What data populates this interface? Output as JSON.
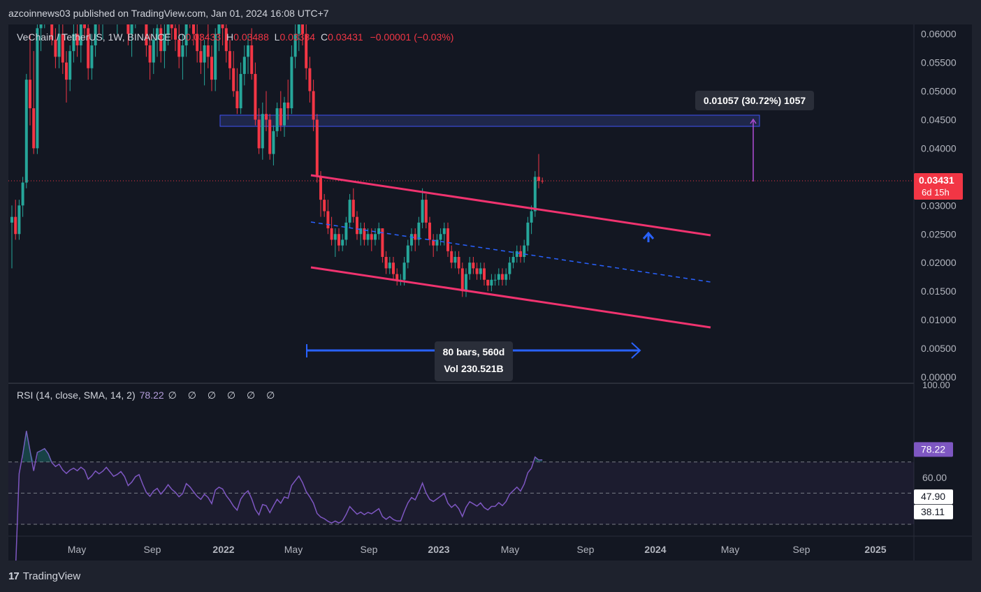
{
  "header": {
    "published": "azcoinnews03 published on TradingView.com, Jan 01, 2024 16:08 UTC+7"
  },
  "legend": {
    "symbol": "VeChain / TetherUS, 1W, BINANCE",
    "o_label": "O",
    "o_value": "0.03433",
    "h_label": "H",
    "h_value": "0.03488",
    "l_label": "L",
    "l_value": "0.03384",
    "c_label": "C",
    "c_value": "0.03431",
    "change": "−0.00001 (−0.03%)"
  },
  "price_axis": {
    "ticks": [
      "0.06000",
      "0.05500",
      "0.05000",
      "0.04500",
      "0.04000",
      "0.03500",
      "0.03000",
      "0.02500",
      "0.02000",
      "0.01500",
      "0.01000",
      "0.00500",
      "0.00000"
    ],
    "current_price": "0.03431",
    "countdown": "6d 15h"
  },
  "annotations": {
    "measure_label": "0.01057 (30.72%) 1057",
    "range_line1": "80 bars, 560d",
    "range_line2": "Vol 230.521B"
  },
  "rsi": {
    "legend": "RSI (14, close, SMA, 14, 2)",
    "value": "78.22",
    "placeholders": "∅ ∅ ∅ ∅ ∅ ∅",
    "axis_top": "100.00",
    "axis_60": "60.00",
    "sma_value": "47.90",
    "lower_value": "38.11"
  },
  "time_axis": [
    "May",
    "Sep",
    "2022",
    "May",
    "Sep",
    "2023",
    "May",
    "Sep",
    "2024",
    "May",
    "Sep",
    "2025"
  ],
  "footer": {
    "brand": "TradingView",
    "logo": "17"
  },
  "colors": {
    "up": "#26a69a",
    "down": "#f23645",
    "channel": "#f0336f",
    "rsi": "#7e57c2",
    "zone": "#3f51b5",
    "bg": "#131722"
  },
  "chart_data": {
    "type": "candlestick",
    "timeframe": "1W",
    "ylim": [
      0,
      0.062
    ],
    "rsi_ylim": [
      0,
      100
    ],
    "series": [
      {
        "name": "VeChain / TetherUS",
        "values": [
          [
            0.027,
            0.03,
            0.019,
            0.028
          ],
          [
            0.028,
            0.031,
            0.024,
            0.025
          ],
          [
            0.025,
            0.031,
            0.024,
            0.03
          ],
          [
            0.03,
            0.035,
            0.028,
            0.034
          ],
          [
            0.034,
            0.053,
            0.033,
            0.052
          ],
          [
            0.052,
            0.06,
            0.044,
            0.047
          ],
          [
            0.047,
            0.057,
            0.039,
            0.04
          ],
          [
            0.04,
            0.063,
            0.039,
            0.061
          ],
          [
            0.061,
            0.068,
            0.057,
            0.064
          ],
          [
            0.064,
            0.07,
            0.061,
            0.068
          ],
          [
            0.068,
            0.075,
            0.063,
            0.065
          ],
          [
            0.065,
            0.068,
            0.058,
            0.059
          ],
          [
            0.059,
            0.061,
            0.054,
            0.056
          ],
          [
            0.056,
            0.062,
            0.054,
            0.06
          ],
          [
            0.06,
            0.064,
            0.053,
            0.055
          ],
          [
            0.055,
            0.057,
            0.048,
            0.052
          ],
          [
            0.052,
            0.058,
            0.05,
            0.057
          ],
          [
            0.057,
            0.062,
            0.055,
            0.06
          ],
          [
            0.06,
            0.065,
            0.056,
            0.058
          ],
          [
            0.058,
            0.064,
            0.055,
            0.063
          ],
          [
            0.063,
            0.07,
            0.059,
            0.061
          ],
          [
            0.061,
            0.063,
            0.052,
            0.054
          ],
          [
            0.054,
            0.06,
            0.052,
            0.058
          ],
          [
            0.058,
            0.066,
            0.056,
            0.064
          ],
          [
            0.064,
            0.068,
            0.06,
            0.062
          ],
          [
            0.062,
            0.066,
            0.059,
            0.065
          ],
          [
            0.065,
            0.072,
            0.063,
            0.07
          ],
          [
            0.07,
            0.074,
            0.066,
            0.067
          ],
          [
            0.067,
            0.07,
            0.062,
            0.064
          ],
          [
            0.064,
            0.068,
            0.06,
            0.066
          ],
          [
            0.066,
            0.071,
            0.064,
            0.069
          ],
          [
            0.069,
            0.073,
            0.065,
            0.066
          ],
          [
            0.066,
            0.069,
            0.058,
            0.06
          ],
          [
            0.06,
            0.065,
            0.056,
            0.063
          ],
          [
            0.063,
            0.07,
            0.061,
            0.068
          ],
          [
            0.068,
            0.073,
            0.064,
            0.07
          ],
          [
            0.07,
            0.075,
            0.062,
            0.064
          ],
          [
            0.064,
            0.066,
            0.056,
            0.058
          ],
          [
            0.058,
            0.06,
            0.052,
            0.055
          ],
          [
            0.055,
            0.061,
            0.053,
            0.059
          ],
          [
            0.059,
            0.063,
            0.056,
            0.061
          ],
          [
            0.061,
            0.064,
            0.055,
            0.057
          ],
          [
            0.057,
            0.062,
            0.054,
            0.06
          ],
          [
            0.06,
            0.066,
            0.058,
            0.064
          ],
          [
            0.064,
            0.067,
            0.059,
            0.061
          ],
          [
            0.061,
            0.064,
            0.057,
            0.059
          ],
          [
            0.059,
            0.062,
            0.054,
            0.056
          ],
          [
            0.056,
            0.06,
            0.052,
            0.058
          ],
          [
            0.058,
            0.066,
            0.056,
            0.065
          ],
          [
            0.065,
            0.07,
            0.061,
            0.063
          ],
          [
            0.063,
            0.067,
            0.058,
            0.06
          ],
          [
            0.06,
            0.063,
            0.055,
            0.057
          ],
          [
            0.057,
            0.06,
            0.053,
            0.055
          ],
          [
            0.055,
            0.059,
            0.051,
            0.058
          ],
          [
            0.058,
            0.062,
            0.054,
            0.056
          ],
          [
            0.056,
            0.058,
            0.05,
            0.052
          ],
          [
            0.052,
            0.061,
            0.05,
            0.06
          ],
          [
            0.06,
            0.065,
            0.057,
            0.062
          ],
          [
            0.062,
            0.066,
            0.058,
            0.061
          ],
          [
            0.061,
            0.064,
            0.055,
            0.057
          ],
          [
            0.057,
            0.059,
            0.052,
            0.054
          ],
          [
            0.054,
            0.057,
            0.049,
            0.05
          ],
          [
            0.05,
            0.054,
            0.046,
            0.047
          ],
          [
            0.047,
            0.055,
            0.046,
            0.053
          ],
          [
            0.053,
            0.058,
            0.051,
            0.056
          ],
          [
            0.056,
            0.06,
            0.053,
            0.058
          ],
          [
            0.058,
            0.061,
            0.052,
            0.053
          ],
          [
            0.053,
            0.055,
            0.044,
            0.045
          ],
          [
            0.045,
            0.047,
            0.039,
            0.04
          ],
          [
            0.04,
            0.048,
            0.038,
            0.046
          ],
          [
            0.046,
            0.05,
            0.043,
            0.045
          ],
          [
            0.045,
            0.046,
            0.038,
            0.039
          ],
          [
            0.039,
            0.044,
            0.037,
            0.043
          ],
          [
            0.043,
            0.048,
            0.042,
            0.047
          ],
          [
            0.047,
            0.05,
            0.043,
            0.044
          ],
          [
            0.044,
            0.049,
            0.042,
            0.048
          ],
          [
            0.048,
            0.052,
            0.045,
            0.047
          ],
          [
            0.047,
            0.058,
            0.046,
            0.056
          ],
          [
            0.056,
            0.063,
            0.054,
            0.06
          ],
          [
            0.06,
            0.068,
            0.057,
            0.064
          ],
          [
            0.064,
            0.066,
            0.058,
            0.06
          ],
          [
            0.06,
            0.063,
            0.052,
            0.054
          ],
          [
            0.054,
            0.056,
            0.048,
            0.05
          ],
          [
            0.05,
            0.052,
            0.043,
            0.045
          ],
          [
            0.045,
            0.046,
            0.034,
            0.035
          ],
          [
            0.035,
            0.036,
            0.028,
            0.031
          ],
          [
            0.031,
            0.032,
            0.028,
            0.029
          ],
          [
            0.029,
            0.031,
            0.025,
            0.026
          ],
          [
            0.026,
            0.028,
            0.023,
            0.024
          ],
          [
            0.024,
            0.026,
            0.021,
            0.025
          ],
          [
            0.025,
            0.026,
            0.022,
            0.023
          ],
          [
            0.023,
            0.025,
            0.022,
            0.024
          ],
          [
            0.024,
            0.028,
            0.023,
            0.027
          ],
          [
            0.027,
            0.032,
            0.026,
            0.031
          ],
          [
            0.031,
            0.033,
            0.027,
            0.028
          ],
          [
            0.028,
            0.029,
            0.024,
            0.025
          ],
          [
            0.025,
            0.027,
            0.023,
            0.026
          ],
          [
            0.026,
            0.027,
            0.023,
            0.024
          ],
          [
            0.024,
            0.026,
            0.023,
            0.025
          ],
          [
            0.025,
            0.026,
            0.022,
            0.024
          ],
          [
            0.024,
            0.026,
            0.023,
            0.025
          ],
          [
            0.025,
            0.027,
            0.024,
            0.026
          ],
          [
            0.026,
            0.026,
            0.02,
            0.021
          ],
          [
            0.021,
            0.022,
            0.018,
            0.019
          ],
          [
            0.019,
            0.021,
            0.018,
            0.02
          ],
          [
            0.02,
            0.021,
            0.017,
            0.018
          ],
          [
            0.018,
            0.019,
            0.016,
            0.017
          ],
          [
            0.017,
            0.018,
            0.016,
            0.017
          ],
          [
            0.017,
            0.021,
            0.016,
            0.02
          ],
          [
            0.02,
            0.024,
            0.019,
            0.023
          ],
          [
            0.023,
            0.026,
            0.022,
            0.025
          ],
          [
            0.025,
            0.026,
            0.022,
            0.024
          ],
          [
            0.024,
            0.028,
            0.023,
            0.027
          ],
          [
            0.027,
            0.033,
            0.026,
            0.031
          ],
          [
            0.031,
            0.032,
            0.026,
            0.027
          ],
          [
            0.027,
            0.028,
            0.023,
            0.024
          ],
          [
            0.024,
            0.025,
            0.021,
            0.023
          ],
          [
            0.023,
            0.025,
            0.022,
            0.024
          ],
          [
            0.024,
            0.026,
            0.023,
            0.025
          ],
          [
            0.025,
            0.027,
            0.023,
            0.026
          ],
          [
            0.026,
            0.027,
            0.021,
            0.022
          ],
          [
            0.022,
            0.023,
            0.019,
            0.02
          ],
          [
            0.02,
            0.022,
            0.019,
            0.021
          ],
          [
            0.021,
            0.022,
            0.018,
            0.019
          ],
          [
            0.019,
            0.02,
            0.014,
            0.015
          ],
          [
            0.015,
            0.019,
            0.014,
            0.018
          ],
          [
            0.018,
            0.021,
            0.017,
            0.02
          ],
          [
            0.02,
            0.021,
            0.018,
            0.019
          ],
          [
            0.019,
            0.02,
            0.017,
            0.018
          ],
          [
            0.018,
            0.02,
            0.017,
            0.019
          ],
          [
            0.019,
            0.02,
            0.016,
            0.017
          ],
          [
            0.017,
            0.017,
            0.015,
            0.016
          ],
          [
            0.016,
            0.018,
            0.015,
            0.017
          ],
          [
            0.017,
            0.018,
            0.016,
            0.017
          ],
          [
            0.017,
            0.019,
            0.016,
            0.018
          ],
          [
            0.018,
            0.019,
            0.016,
            0.017
          ],
          [
            0.017,
            0.019,
            0.016,
            0.018
          ],
          [
            0.018,
            0.021,
            0.017,
            0.02
          ],
          [
            0.02,
            0.022,
            0.019,
            0.021
          ],
          [
            0.021,
            0.023,
            0.02,
            0.022
          ],
          [
            0.022,
            0.023,
            0.02,
            0.021
          ],
          [
            0.021,
            0.024,
            0.02,
            0.023
          ],
          [
            0.023,
            0.028,
            0.022,
            0.027
          ],
          [
            0.027,
            0.03,
            0.025,
            0.029
          ],
          [
            0.029,
            0.036,
            0.028,
            0.035
          ],
          [
            0.035,
            0.039,
            0.033,
            0.0343
          ],
          [
            0.03433,
            0.03488,
            0.03384,
            0.03431
          ]
        ]
      }
    ]
  }
}
